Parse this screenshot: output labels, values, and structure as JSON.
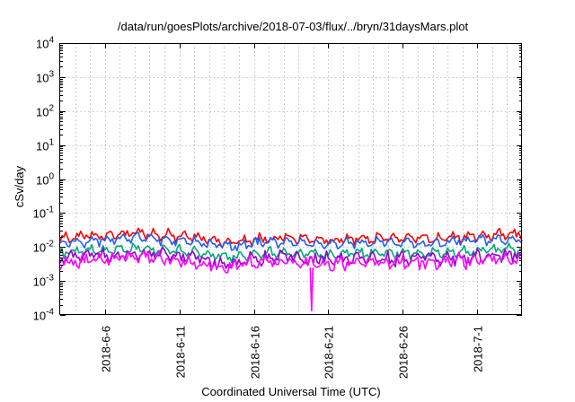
{
  "chart_data": {
    "type": "line",
    "title": "/data/run/goesPlots/archive/2018-07-03/flux/../bryn/31daysMars.plot",
    "xlabel": "Coordinated Universal Time (UTC)",
    "ylabel": "cSv/day",
    "yscale": "log",
    "ylim": [
      0.0001,
      10000
    ],
    "xlim": [
      "2018-06-03T00:00",
      "2018-07-04T00:00"
    ],
    "grid": true,
    "legend": "none",
    "x_ticks": [
      {
        "date": "2018-06-06",
        "label": "2018-6-6"
      },
      {
        "date": "2018-06-11",
        "label": "2018-6-11"
      },
      {
        "date": "2018-06-16",
        "label": "2018-6-16"
      },
      {
        "date": "2018-06-21",
        "label": "2018-6-21"
      },
      {
        "date": "2018-06-26",
        "label": "2018-6-26"
      },
      {
        "date": "2018-07-01",
        "label": "2018-7-1"
      }
    ],
    "y_ticks": [
      {
        "base": "10",
        "exp": "-4"
      },
      {
        "base": "10",
        "exp": "-3"
      },
      {
        "base": "10",
        "exp": "-2"
      },
      {
        "base": "10",
        "exp": "-1"
      },
      {
        "base": "10",
        "exp": "0"
      },
      {
        "base": "10",
        "exp": "1"
      },
      {
        "base": "10",
        "exp": "2"
      },
      {
        "base": "10",
        "exp": "3"
      },
      {
        "base": "10",
        "exp": "4"
      }
    ],
    "daily_x": [
      "2018-06-03",
      "2018-06-04",
      "2018-06-05",
      "2018-06-06",
      "2018-06-07",
      "2018-06-08",
      "2018-06-09",
      "2018-06-10",
      "2018-06-11",
      "2018-06-12",
      "2018-06-13",
      "2018-06-14",
      "2018-06-15",
      "2018-06-16",
      "2018-06-17",
      "2018-06-18",
      "2018-06-19",
      "2018-06-20",
      "2018-06-21",
      "2018-06-22",
      "2018-06-23",
      "2018-06-24",
      "2018-06-25",
      "2018-06-26",
      "2018-06-27",
      "2018-06-28",
      "2018-06-29",
      "2018-06-30",
      "2018-07-01",
      "2018-07-02",
      "2018-07-03",
      "2018-07-04"
    ],
    "series": [
      {
        "color": "#ff0000",
        "values": [
          0.018,
          0.02,
          0.022,
          0.022,
          0.024,
          0.025,
          0.023,
          0.022,
          0.021,
          0.02,
          0.016,
          0.014,
          0.015,
          0.017,
          0.018,
          0.019,
          0.018,
          0.017,
          0.016,
          0.016,
          0.017,
          0.018,
          0.018,
          0.019,
          0.018,
          0.017,
          0.019,
          0.02,
          0.021,
          0.022,
          0.023,
          0.024
        ]
      },
      {
        "color": "#1f5fff",
        "values": [
          0.013,
          0.015,
          0.016,
          0.016,
          0.018,
          0.019,
          0.017,
          0.016,
          0.016,
          0.015,
          0.012,
          0.011,
          0.011,
          0.013,
          0.014,
          0.014,
          0.013,
          0.013,
          0.012,
          0.012,
          0.013,
          0.014,
          0.014,
          0.014,
          0.013,
          0.013,
          0.014,
          0.015,
          0.016,
          0.016,
          0.017,
          0.017
        ]
      },
      {
        "color": "#00a878",
        "values": [
          0.0065,
          0.0075,
          0.008,
          0.008,
          0.0085,
          0.009,
          0.0085,
          0.008,
          0.0078,
          0.0072,
          0.006,
          0.0052,
          0.0055,
          0.0062,
          0.0066,
          0.0068,
          0.0065,
          0.0062,
          0.006,
          0.006,
          0.0063,
          0.0066,
          0.0066,
          0.0068,
          0.0065,
          0.0063,
          0.0068,
          0.0072,
          0.0075,
          0.0078,
          0.008,
          0.0082
        ]
      },
      {
        "color": "#9400d3",
        "values": [
          0.0045,
          0.0052,
          0.0056,
          0.0056,
          0.006,
          0.0062,
          0.0058,
          0.0056,
          0.0054,
          0.005,
          0.004,
          0.0034,
          0.0036,
          0.0042,
          0.0046,
          0.0048,
          0.0045,
          0.0043,
          0.0042,
          0.0042,
          0.0044,
          0.0046,
          0.0046,
          0.0047,
          0.0045,
          0.0044,
          0.0047,
          0.005,
          0.0053,
          0.0055,
          0.0056,
          0.0058
        ]
      },
      {
        "color": "#ff00ff",
        "values": [
          0.0035,
          0.004,
          0.0043,
          0.0043,
          0.0046,
          0.0048,
          0.0045,
          0.0043,
          0.0042,
          0.0038,
          0.003,
          0.0026,
          0.0028,
          0.0033,
          0.0036,
          0.0037,
          0.0035,
          0.0033,
          0.0032,
          0.0032,
          0.0034,
          0.0036,
          0.0036,
          0.0037,
          0.0035,
          0.0034,
          0.0036,
          0.0039,
          0.0041,
          0.0043,
          0.0044,
          0.0045
        ]
      }
    ],
    "annotations": [
      {
        "series_color": "#ff00ff",
        "date": "2018-06-19T21:00",
        "value": 0.00013,
        "note_type": "dip"
      }
    ]
  }
}
